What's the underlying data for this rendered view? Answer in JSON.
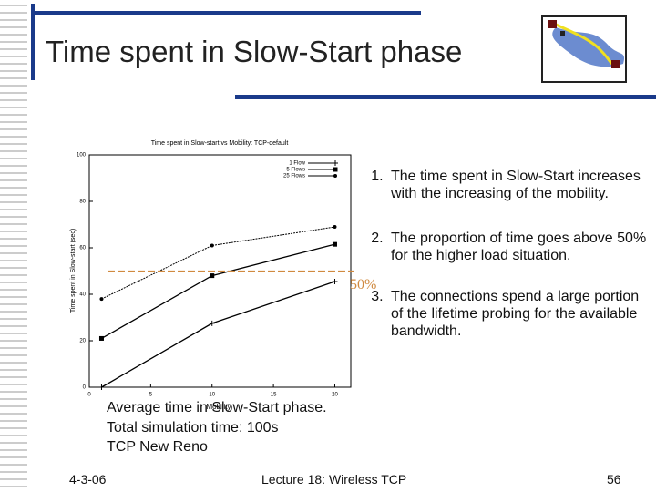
{
  "slide": {
    "title": "Time spent in Slow-Start phase",
    "bullets": [
      "The time spent in Slow-Start increases with the increasing of the mobility.",
      "The proportion of time goes above 50% for the higher load situation.",
      "The connections spend a large portion of the lifetime probing for the available bandwidth."
    ],
    "caption": [
      "Average time in Slow-Start phase.",
      "Total simulation time: 100s",
      "TCP New Reno"
    ],
    "footer": {
      "date": "4-3-06",
      "lecture": "Lecture 18: Wireless TCP",
      "page": "56"
    }
  },
  "chart_data": {
    "type": "line",
    "title": "Time spent in Slow-start vs Mobility: TCP-default",
    "x_label": "Mobility",
    "y_label": "Time spent in Slow-start (sec)",
    "x": [
      1,
      10,
      20
    ],
    "series": [
      {
        "name": "1 Flow",
        "color": "#000000",
        "marker": "plus",
        "values": [
          0,
          27.5,
          45.5
        ]
      },
      {
        "name": "5 Flows",
        "color": "#000000",
        "marker": "square",
        "values": [
          21,
          48,
          61.5
        ]
      },
      {
        "name": "25 Flows",
        "color": "#000000",
        "marker": "dot",
        "values": [
          38,
          61,
          69
        ]
      }
    ],
    "xlim": [
      0,
      21.3
    ],
    "xticks": [
      0,
      5,
      10,
      15,
      20
    ],
    "ylim": [
      0,
      100
    ],
    "yticks": [
      0,
      20,
      40,
      60,
      80,
      100
    ],
    "reference_line": {
      "value": 50,
      "label": "50%",
      "color": "#d08a40"
    }
  }
}
